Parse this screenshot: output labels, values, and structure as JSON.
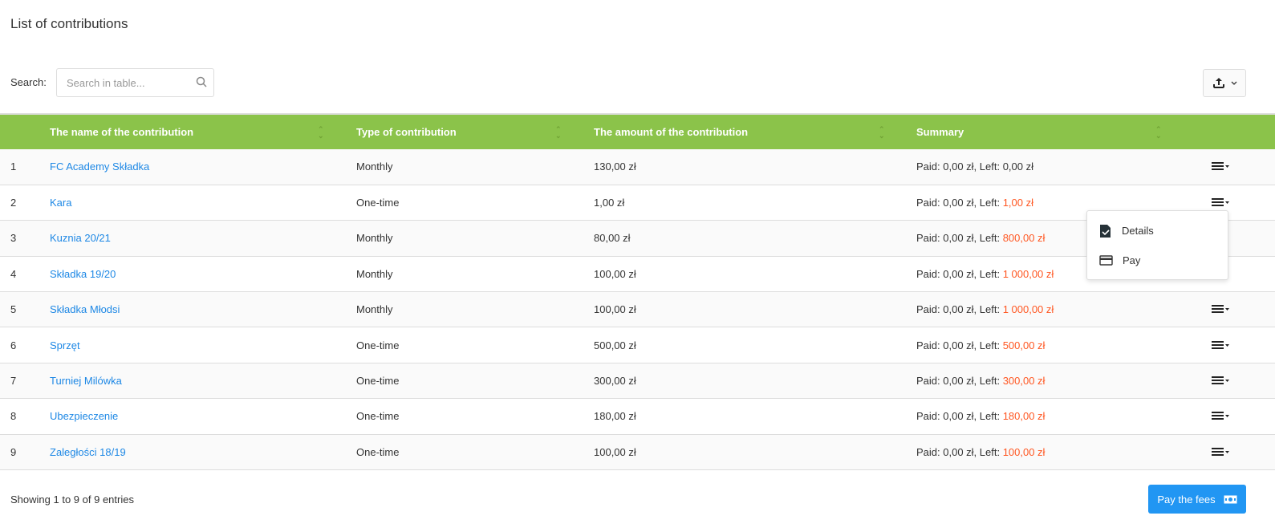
{
  "page": {
    "title": "List of contributions"
  },
  "search": {
    "label": "Search:",
    "placeholder": "Search in table..."
  },
  "table": {
    "headers": [
      "The name of the contribution",
      "Type of contribution",
      "The amount of the contribution",
      "Summary"
    ],
    "rows": [
      {
        "n": "1",
        "name": "FC Academy Składka",
        "type": "Monthly",
        "amount": "130,00 zł",
        "paid": "Paid: 0,00 zł, Left: ",
        "left": "0,00 zł",
        "overdue": false
      },
      {
        "n": "2",
        "name": "Kara",
        "type": "One-time",
        "amount": "1,00 zł",
        "paid": "Paid: 0,00 zł, Left: ",
        "left": "1,00 zł",
        "overdue": true
      },
      {
        "n": "3",
        "name": "Kuznia 20/21",
        "type": "Monthly",
        "amount": "80,00 zł",
        "paid": "Paid: 0,00 zł, Left: ",
        "left": "800,00 zł",
        "overdue": true
      },
      {
        "n": "4",
        "name": "Składka 19/20",
        "type": "Monthly",
        "amount": "100,00 zł",
        "paid": "Paid: 0,00 zł, Left: ",
        "left": "1 000,00 zł",
        "overdue": true
      },
      {
        "n": "5",
        "name": "Składka Młodsi",
        "type": "Monthly",
        "amount": "100,00 zł",
        "paid": "Paid: 0,00 zł, Left: ",
        "left": "1 000,00 zł",
        "overdue": true
      },
      {
        "n": "6",
        "name": "Sprzęt",
        "type": "One-time",
        "amount": "500,00 zł",
        "paid": "Paid: 0,00 zł, Left: ",
        "left": "500,00 zł",
        "overdue": true
      },
      {
        "n": "7",
        "name": "Turniej Milówka",
        "type": "One-time",
        "amount": "300,00 zł",
        "paid": "Paid: 0,00 zł, Left: ",
        "left": "300,00 zł",
        "overdue": true
      },
      {
        "n": "8",
        "name": "Ubezpieczenie",
        "type": "One-time",
        "amount": "180,00 zł",
        "paid": "Paid: 0,00 zł, Left: ",
        "left": "180,00 zł",
        "overdue": true
      },
      {
        "n": "9",
        "name": "Zaległości 18/19",
        "type": "One-time",
        "amount": "100,00 zł",
        "paid": "Paid: 0,00 zł, Left: ",
        "left": "100,00 zł",
        "overdue": true
      }
    ]
  },
  "dropdown": {
    "items": [
      "Details",
      "Pay"
    ]
  },
  "footer": {
    "showing_prefix": "Showing ",
    "from": "1",
    "to_word": " to ",
    "to": "9",
    "of_word": " of ",
    "total": "9",
    "suffix": " entries",
    "pay_button": "Pay the fees"
  },
  "colors": {
    "header": "#8bc34a",
    "link": "#1e88e5",
    "overdue": "#ff5722",
    "primary": "#2196f3"
  }
}
